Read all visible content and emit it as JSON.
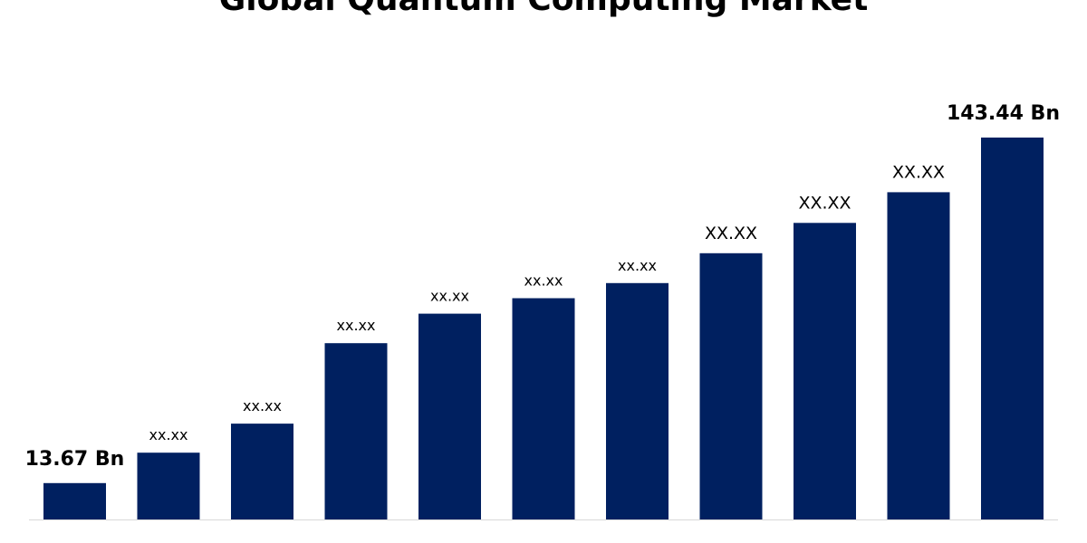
{
  "chart_data": {
    "type": "bar",
    "title": "Global Quantum Computing Market",
    "xlabel": "",
    "ylabel": "",
    "ylim": [
      0,
      160
    ],
    "grid": false,
    "legend": "none",
    "bar_color": "#002060",
    "values": [
      13.67,
      25.1,
      36.0,
      66.2,
      77.3,
      83.1,
      88.8,
      100.0,
      111.4,
      122.9,
      143.44
    ],
    "labels": [
      "13.67 Bn",
      "xx.xx",
      "xx.xx",
      "xx.xx",
      "xx.xx",
      "xx.xx",
      "xx.xx",
      "XX.XX",
      "XX.XX",
      "XX.XX",
      "143.44 Bn"
    ]
  }
}
